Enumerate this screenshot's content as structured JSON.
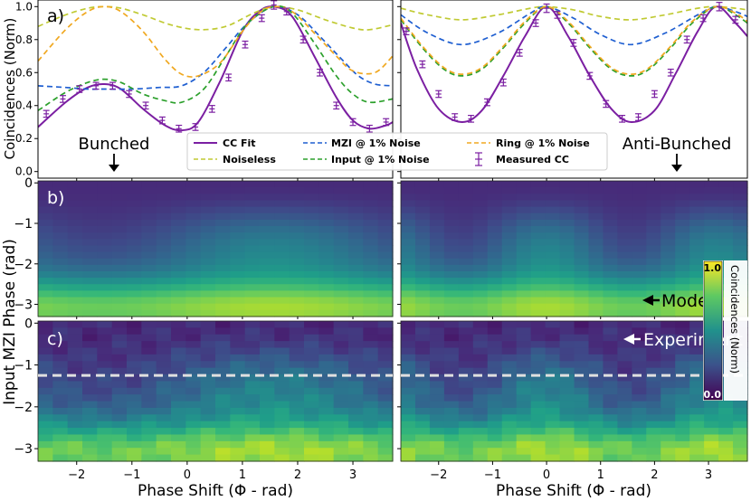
{
  "chart_data": [
    {
      "panel": "a-left",
      "type": "line",
      "label": "a)",
      "annotation": "Bunched",
      "xlim": [
        -2.7,
        3.72
      ],
      "ylim": [
        -0.04,
        1.04
      ],
      "y_ticks": [
        "0.0",
        "0.2",
        "0.4",
        "0.6",
        "0.8",
        "1.0"
      ],
      "ylabel": "Coincidences (Norm)",
      "series": [
        {
          "name": "CC Fit",
          "color": "#7b1fa2",
          "dash": "solid",
          "x": [
            -2.7,
            -2.2,
            -1.8,
            -1.5,
            -1.2,
            -0.8,
            -0.4,
            -0.1,
            0.2,
            0.6,
            1.0,
            1.3,
            1.57,
            1.9,
            2.3,
            2.7,
            3.0,
            3.3,
            3.6,
            3.72
          ],
          "y": [
            0.27,
            0.42,
            0.51,
            0.53,
            0.5,
            0.38,
            0.28,
            0.25,
            0.3,
            0.55,
            0.85,
            0.97,
            1.0,
            0.94,
            0.7,
            0.45,
            0.31,
            0.26,
            0.28,
            0.3
          ]
        },
        {
          "name": "Noiseless",
          "color": "#c0ca33",
          "dash": "6,4",
          "x": [
            -2.7,
            -2.2,
            -1.8,
            -1.5,
            -1.2,
            -0.8,
            -0.3,
            0.2,
            0.7,
            1.2,
            1.57,
            2.0,
            2.5,
            3.0,
            3.3,
            3.72
          ],
          "y": [
            0.88,
            0.95,
            0.99,
            1.0,
            0.99,
            0.95,
            0.89,
            0.86,
            0.88,
            0.96,
            1.0,
            0.98,
            0.92,
            0.87,
            0.86,
            0.89
          ]
        },
        {
          "name": "MZI @ 1% Noise",
          "color": "#1f5fd1",
          "dash": "6,4",
          "x": [
            -2.7,
            -2.2,
            -1.8,
            -1.5,
            -1.0,
            -0.5,
            -0.1,
            0.3,
            0.7,
            1.1,
            1.57,
            2.0,
            2.4,
            2.8,
            3.1,
            3.4,
            3.72
          ],
          "y": [
            0.52,
            0.51,
            0.5,
            0.5,
            0.5,
            0.51,
            0.52,
            0.6,
            0.75,
            0.9,
            1.0,
            0.95,
            0.82,
            0.68,
            0.58,
            0.53,
            0.52
          ]
        },
        {
          "name": "Input @ 1% Noise",
          "color": "#2ca02c",
          "dash": "6,4",
          "x": [
            -2.7,
            -2.2,
            -1.8,
            -1.5,
            -1.2,
            -0.8,
            -0.4,
            -0.1,
            0.3,
            0.7,
            1.1,
            1.57,
            1.9,
            2.3,
            2.7,
            3.0,
            3.3,
            3.72
          ],
          "y": [
            0.37,
            0.48,
            0.54,
            0.56,
            0.54,
            0.47,
            0.43,
            0.42,
            0.5,
            0.7,
            0.9,
            1.0,
            0.96,
            0.78,
            0.58,
            0.47,
            0.42,
            0.44
          ]
        },
        {
          "name": "Ring @ 1% Noise",
          "color": "#f0a820",
          "dash": "6,4",
          "x": [
            -2.7,
            -2.2,
            -1.8,
            -1.5,
            -1.2,
            -0.8,
            -0.4,
            -0.1,
            0.2,
            0.6,
            1.0,
            1.3,
            1.57,
            1.9,
            2.3,
            2.7,
            3.0,
            3.4,
            3.72
          ],
          "y": [
            0.67,
            0.86,
            0.97,
            1.0,
            0.97,
            0.85,
            0.68,
            0.59,
            0.58,
            0.66,
            0.85,
            0.96,
            1.0,
            0.97,
            0.84,
            0.7,
            0.61,
            0.6,
            0.7
          ]
        }
      ],
      "measured": {
        "name": "Measured CC",
        "color": "#7b1fa2",
        "x": [
          -2.55,
          -2.25,
          -1.95,
          -1.65,
          -1.35,
          -1.05,
          -0.75,
          -0.45,
          -0.15,
          0.15,
          0.45,
          0.75,
          1.05,
          1.35,
          1.57,
          1.8,
          2.1,
          2.4,
          2.7,
          3.0,
          3.3,
          3.6
        ],
        "y": [
          0.35,
          0.44,
          0.5,
          0.52,
          0.52,
          0.47,
          0.4,
          0.31,
          0.26,
          0.27,
          0.38,
          0.57,
          0.77,
          0.93,
          1.01,
          0.97,
          0.8,
          0.6,
          0.4,
          0.3,
          0.26,
          0.3
        ],
        "err": [
          0.015,
          0.015,
          0.015,
          0.015,
          0.015,
          0.015,
          0.015,
          0.015,
          0.015,
          0.015,
          0.015,
          0.015,
          0.015,
          0.015,
          0.02,
          0.015,
          0.015,
          0.015,
          0.015,
          0.015,
          0.015,
          0.015
        ]
      }
    },
    {
      "panel": "a-right",
      "type": "line",
      "annotation": "Anti-Bunched",
      "xlim": [
        -2.7,
        3.72
      ],
      "ylim": [
        -0.04,
        1.04
      ],
      "series": [
        {
          "name": "CC Fit",
          "color": "#7b1fa2",
          "dash": "solid",
          "x": [
            -2.7,
            -2.4,
            -2.0,
            -1.57,
            -1.2,
            -0.8,
            -0.4,
            0.0,
            0.4,
            0.8,
            1.2,
            1.57,
            2.0,
            2.4,
            2.8,
            3.14,
            3.5,
            3.72
          ],
          "y": [
            0.9,
            0.62,
            0.38,
            0.3,
            0.37,
            0.58,
            0.82,
            1.0,
            0.82,
            0.58,
            0.38,
            0.3,
            0.37,
            0.6,
            0.85,
            1.0,
            0.9,
            0.82
          ]
        },
        {
          "name": "Noiseless",
          "color": "#c0ca33",
          "dash": "6,4",
          "x": [
            -2.7,
            -2.2,
            -1.57,
            -0.9,
            -0.3,
            0.0,
            0.5,
            1.0,
            1.57,
            2.2,
            2.8,
            3.14,
            3.5,
            3.72
          ],
          "y": [
            0.99,
            0.95,
            0.92,
            0.95,
            0.99,
            1.0,
            0.98,
            0.94,
            0.92,
            0.95,
            0.99,
            1.0,
            0.99,
            0.98
          ]
        },
        {
          "name": "MZI @ 1% Noise",
          "color": "#1f5fd1",
          "dash": "6,4",
          "x": [
            -2.7,
            -2.2,
            -1.57,
            -0.9,
            -0.3,
            0.0,
            0.5,
            1.0,
            1.57,
            2.2,
            2.8,
            3.14,
            3.5,
            3.72
          ],
          "y": [
            0.95,
            0.84,
            0.77,
            0.84,
            0.96,
            1.0,
            0.93,
            0.83,
            0.77,
            0.84,
            0.95,
            1.0,
            0.97,
            0.94
          ]
        },
        {
          "name": "Input @ 1% Noise",
          "color": "#2ca02c",
          "dash": "6,4",
          "x": [
            -2.7,
            -2.3,
            -1.9,
            -1.57,
            -1.2,
            -0.8,
            -0.4,
            0.0,
            0.4,
            0.8,
            1.2,
            1.57,
            1.9,
            2.3,
            2.7,
            3.14,
            3.5,
            3.72
          ],
          "y": [
            0.92,
            0.75,
            0.62,
            0.58,
            0.62,
            0.75,
            0.9,
            1.0,
            0.9,
            0.75,
            0.62,
            0.58,
            0.62,
            0.75,
            0.9,
            1.0,
            0.95,
            0.9
          ]
        },
        {
          "name": "Ring @ 1% Noise",
          "color": "#f0a820",
          "dash": "6,4",
          "x": [
            -2.7,
            -2.3,
            -1.9,
            -1.57,
            -1.2,
            -0.8,
            -0.4,
            0.0,
            0.4,
            0.8,
            1.2,
            1.57,
            1.9,
            2.3,
            2.7,
            3.14,
            3.5,
            3.72
          ],
          "y": [
            0.93,
            0.76,
            0.63,
            0.59,
            0.63,
            0.76,
            0.91,
            1.0,
            0.91,
            0.76,
            0.63,
            0.59,
            0.63,
            0.76,
            0.91,
            1.0,
            0.96,
            0.91
          ]
        }
      ],
      "measured": {
        "name": "Measured CC",
        "color": "#7b1fa2",
        "x": [
          -2.6,
          -2.3,
          -2.0,
          -1.7,
          -1.4,
          -1.1,
          -0.8,
          -0.5,
          -0.2,
          0.0,
          0.2,
          0.5,
          0.8,
          1.1,
          1.4,
          1.7,
          2.0,
          2.3,
          2.6,
          2.9,
          3.2,
          3.5
        ],
        "y": [
          0.85,
          0.65,
          0.47,
          0.33,
          0.32,
          0.42,
          0.54,
          0.72,
          0.9,
          0.99,
          0.95,
          0.78,
          0.58,
          0.41,
          0.32,
          0.33,
          0.47,
          0.6,
          0.8,
          0.93,
          1.0,
          0.92
        ],
        "err": [
          0.015,
          0.015,
          0.015,
          0.015,
          0.015,
          0.015,
          0.015,
          0.015,
          0.015,
          0.02,
          0.015,
          0.015,
          0.015,
          0.015,
          0.015,
          0.015,
          0.015,
          0.015,
          0.015,
          0.015,
          0.02,
          0.015
        ]
      }
    },
    {
      "panel": "b",
      "type": "heatmap",
      "label": "b)",
      "annotation": "Model",
      "xlim": [
        -2.7,
        3.72
      ],
      "ylim": [
        -3.3,
        0.05
      ],
      "y_ticks": [
        "0",
        "−1",
        "−2",
        "−3"
      ]
    },
    {
      "panel": "c",
      "type": "heatmap",
      "label": "c)",
      "annotation": "Experiment",
      "dashed_line_y": -1.25,
      "xlim": [
        -2.7,
        3.72
      ],
      "ylim": [
        -3.3,
        0.05
      ],
      "y_ticks": [
        "0",
        "−1",
        "−2",
        "−3"
      ],
      "x_ticks": [
        "−2",
        "−1",
        "0",
        "1",
        "2",
        "3"
      ]
    }
  ],
  "legend": {
    "entries": [
      "CC Fit",
      "Noiseless",
      "MZI @ 1% Noise",
      "Input @ 1% Noise",
      "Ring @ 1% Noise",
      "Measured CC"
    ]
  },
  "colorbar": {
    "label": "Coincidences (Norm)",
    "max_label": "1.0",
    "min_label": "0.0"
  },
  "axes_text": {
    "xlabel": "Phase Shift (Φ - rad)",
    "ylabel_bottom": "Input MZI Phase (rad)",
    "ylabel_top": "Coincidences (Norm)"
  },
  "colors": {
    "fit": "#7b1fa2",
    "dashed_line": "#e0e0e0",
    "bg": "#ffffff"
  }
}
